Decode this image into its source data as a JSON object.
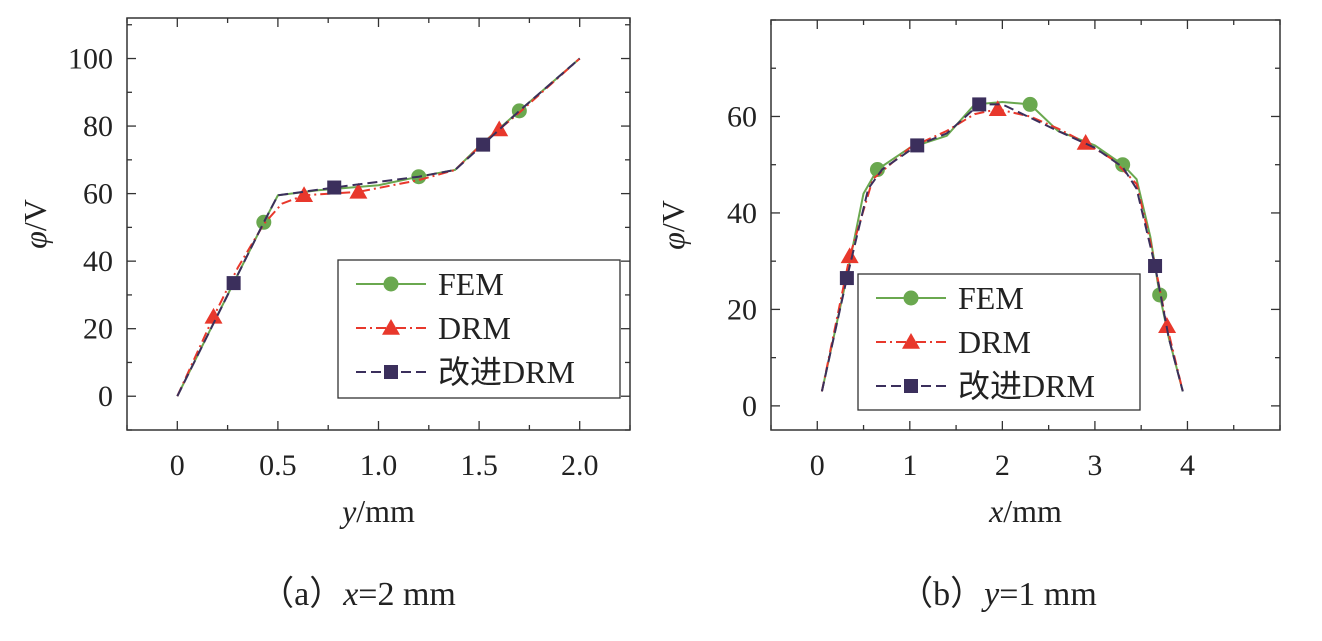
{
  "chart_data": [
    {
      "type": "line",
      "caption": {
        "prefix": "（a）",
        "var": "x",
        "rest": "=2 mm"
      },
      "xlabel": {
        "var": "y",
        "unit": "/mm"
      },
      "ylabel": {
        "var": "φ",
        "unit": "/V"
      },
      "xlim": [
        -0.25,
        2.25
      ],
      "ylim": [
        -10,
        112
      ],
      "xticks": [
        0,
        0.5,
        1.0,
        1.5,
        2.0
      ],
      "xtick_labels": [
        "0",
        "0.5",
        "1.0",
        "1.5",
        "2.0"
      ],
      "yticks": [
        0,
        20,
        40,
        60,
        80,
        100
      ],
      "ytick_labels": [
        "0",
        "20",
        "40",
        "60",
        "80",
        "100"
      ],
      "legend_position": "bottom-right",
      "series": [
        {
          "name": "FEM",
          "color": "#6aa84f",
          "marker": "circle",
          "dash": "solid",
          "line": [
            [
              0,
              0
            ],
            [
              0.1,
              12
            ],
            [
              0.2,
              24
            ],
            [
              0.3,
              36
            ],
            [
              0.43,
              51.5
            ],
            [
              0.5,
              59.5
            ],
            [
              0.7,
              61
            ],
            [
              1.0,
              62.5
            ],
            [
              1.2,
              65
            ],
            [
              1.38,
              67
            ],
            [
              1.5,
              74
            ],
            [
              1.7,
              84.5
            ],
            [
              2.0,
              100
            ]
          ],
          "markers": [
            [
              0.43,
              51.5
            ],
            [
              1.2,
              65
            ],
            [
              1.7,
              84.5
            ]
          ]
        },
        {
          "name": "DRM",
          "color": "#e8382c",
          "marker": "triangle",
          "dash": "dashdot",
          "line": [
            [
              0,
              0
            ],
            [
              0.18,
              23.5
            ],
            [
              0.3,
              38
            ],
            [
              0.43,
              51
            ],
            [
              0.52,
              57
            ],
            [
              0.63,
              59.5
            ],
            [
              0.9,
              60.5
            ],
            [
              1.2,
              64
            ],
            [
              1.38,
              67
            ],
            [
              1.52,
              75
            ],
            [
              1.6,
              79
            ],
            [
              1.7,
              84
            ],
            [
              2.0,
              100
            ]
          ],
          "markers": [
            [
              0.18,
              23.5
            ],
            [
              0.63,
              59.5
            ],
            [
              0.9,
              60.5
            ],
            [
              1.6,
              79
            ]
          ]
        },
        {
          "name": "改进DRM",
          "color": "#3b2f5c",
          "marker": "square",
          "dash": "dash",
          "line": [
            [
              0,
              0
            ],
            [
              0.28,
              33.5
            ],
            [
              0.43,
              51.5
            ],
            [
              0.5,
              59.5
            ],
            [
              0.78,
              61.8
            ],
            [
              1.2,
              65
            ],
            [
              1.38,
              67
            ],
            [
              1.52,
              74.5
            ],
            [
              1.7,
              84.5
            ],
            [
              2.0,
              100
            ]
          ],
          "markers": [
            [
              0.28,
              33.5
            ],
            [
              0.78,
              61.8
            ],
            [
              1.52,
              74.5
            ]
          ]
        }
      ]
    },
    {
      "type": "line",
      "caption": {
        "prefix": "（b）",
        "var": "y",
        "rest": "=1 mm"
      },
      "xlabel": {
        "var": "x",
        "unit": "/mm"
      },
      "ylabel": {
        "var": "φ",
        "unit": "/V"
      },
      "xlim": [
        -0.5,
        5.0
      ],
      "ylim": [
        -5,
        80
      ],
      "xticks": [
        0,
        1,
        2,
        3,
        4
      ],
      "xtick_labels": [
        "0",
        "1",
        "2",
        "3",
        "4"
      ],
      "yticks": [
        0,
        20,
        40,
        60
      ],
      "ytick_labels": [
        "0",
        "20",
        "40",
        "60"
      ],
      "legend_position": "bottom-center",
      "series": [
        {
          "name": "FEM",
          "color": "#6aa84f",
          "marker": "circle",
          "dash": "solid",
          "line": [
            [
              0.05,
              3
            ],
            [
              0.3,
              25
            ],
            [
              0.5,
              44
            ],
            [
              0.65,
              49
            ],
            [
              1.0,
              53.5
            ],
            [
              1.4,
              56
            ],
            [
              1.7,
              62.5
            ],
            [
              2.0,
              63
            ],
            [
              2.3,
              62.5
            ],
            [
              2.6,
              57
            ],
            [
              3.0,
              54
            ],
            [
              3.3,
              50
            ],
            [
              3.45,
              47
            ],
            [
              3.6,
              35
            ],
            [
              3.7,
              23
            ],
            [
              3.8,
              14
            ],
            [
              3.95,
              3
            ]
          ],
          "markers": [
            [
              0.65,
              49
            ],
            [
              2.3,
              62.5
            ],
            [
              3.3,
              50
            ],
            [
              3.7,
              23
            ]
          ]
        },
        {
          "name": "DRM",
          "color": "#e8382c",
          "marker": "triangle",
          "dash": "dashdot",
          "line": [
            [
              0.05,
              3
            ],
            [
              0.35,
              31
            ],
            [
              0.6,
              47
            ],
            [
              1.0,
              53.5
            ],
            [
              1.4,
              57
            ],
            [
              1.7,
              60.5
            ],
            [
              1.95,
              61.5
            ],
            [
              2.3,
              60
            ],
            [
              2.6,
              57.5
            ],
            [
              2.9,
              54.5
            ],
            [
              3.2,
              51
            ],
            [
              3.45,
              46
            ],
            [
              3.6,
              34
            ],
            [
              3.78,
              16.5
            ],
            [
              3.95,
              3
            ]
          ],
          "markers": [
            [
              0.35,
              31
            ],
            [
              1.95,
              61.5
            ],
            [
              2.9,
              54.5
            ],
            [
              3.78,
              16.5
            ]
          ]
        },
        {
          "name": "改进DRM",
          "color": "#3b2f5c",
          "marker": "square",
          "dash": "dash",
          "line": [
            [
              0.05,
              3
            ],
            [
              0.32,
              26.5
            ],
            [
              0.55,
              45
            ],
            [
              0.7,
              49
            ],
            [
              1.08,
              54
            ],
            [
              1.4,
              56.5
            ],
            [
              1.75,
              62.5
            ],
            [
              2.0,
              62.5
            ],
            [
              2.6,
              57
            ],
            [
              3.0,
              53.5
            ],
            [
              3.3,
              49.5
            ],
            [
              3.45,
              45
            ],
            [
              3.65,
              29
            ],
            [
              3.8,
              14
            ],
            [
              3.95,
              3
            ]
          ],
          "markers": [
            [
              0.32,
              26.5
            ],
            [
              1.08,
              54
            ],
            [
              1.75,
              62.5
            ],
            [
              3.65,
              29
            ]
          ]
        }
      ]
    }
  ]
}
